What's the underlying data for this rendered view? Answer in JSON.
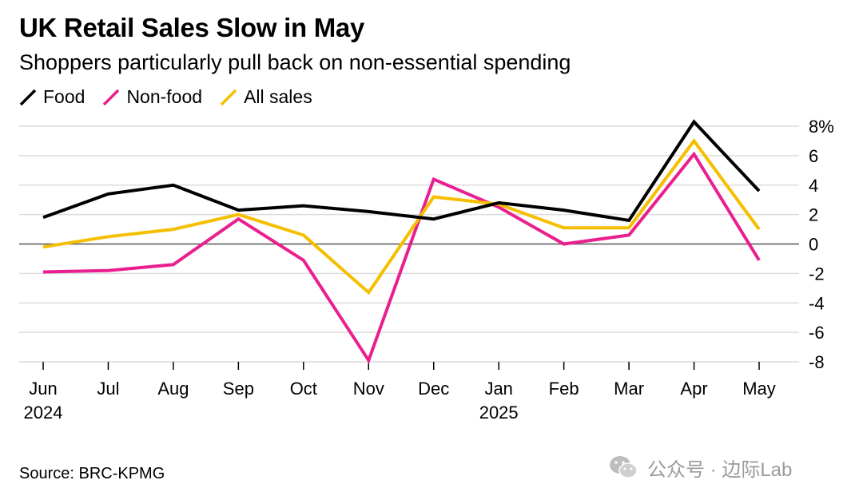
{
  "title": "UK Retail Sales Slow in May",
  "subtitle": "Shoppers particularly pull back on non-essential spending",
  "source": "Source: BRC-KPMG",
  "watermark": "公众号 · 边际Lab",
  "colors": {
    "food": "#000000",
    "non_food": "#ea1f8f",
    "all_sales": "#f5bf00",
    "grid": "#dcdcdc",
    "zero": "#555555"
  },
  "chart_data": {
    "type": "line",
    "title": "UK Retail Sales Slow in May",
    "categories": [
      "Jun",
      "Jul",
      "Aug",
      "Sep",
      "Oct",
      "Nov",
      "Dec",
      "Jan",
      "Feb",
      "Mar",
      "Apr",
      "May"
    ],
    "year_labels": [
      {
        "index": 0,
        "label": "2024"
      },
      {
        "index": 7,
        "label": "2025"
      }
    ],
    "y_ticks": [
      "8%",
      "6",
      "4",
      "2",
      "0",
      "-2",
      "-4",
      "-6",
      "-8"
    ],
    "y_tick_values": [
      8,
      6,
      4,
      2,
      0,
      -2,
      -4,
      -6,
      -8
    ],
    "ylim": [
      -8,
      8
    ],
    "grid": true,
    "legend_position": "top-left",
    "series": [
      {
        "name": "Food",
        "color": "#000000",
        "values": [
          1.8,
          3.4,
          4.0,
          2.3,
          2.6,
          2.2,
          1.7,
          2.8,
          2.3,
          1.6,
          8.3,
          3.6
        ]
      },
      {
        "name": "Non-food",
        "color": "#ea1f8f",
        "values": [
          -1.9,
          -1.8,
          -1.4,
          1.7,
          -1.1,
          -7.9,
          4.4,
          2.5,
          0.0,
          0.6,
          6.1,
          -1.1
        ]
      },
      {
        "name": "All sales",
        "color": "#f5bf00",
        "values": [
          -0.2,
          0.5,
          1.0,
          2.0,
          0.6,
          -3.3,
          3.2,
          2.7,
          1.1,
          1.1,
          7.0,
          1.0
        ]
      }
    ]
  }
}
